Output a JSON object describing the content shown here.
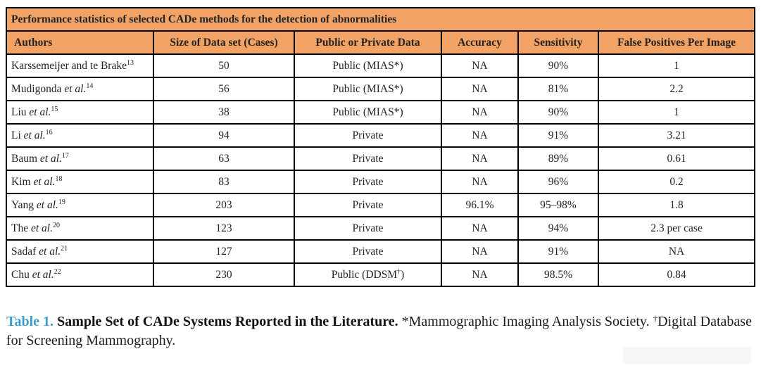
{
  "table": {
    "title": "Performance statistics of selected CADe methods for the detection of abnormalities",
    "columns": [
      "Authors",
      "Size of Data set (Cases)",
      "Public or Private Data",
      "Accuracy",
      "Sensitivity",
      "False Positives Per Image"
    ],
    "rows": [
      [
        [
          {
            "t": "Karssemeijer and te Brake"
          },
          {
            "t": "13",
            "sup": true
          }
        ],
        [
          {
            "t": "50"
          }
        ],
        [
          {
            "t": "Public (MIAS*)"
          }
        ],
        [
          {
            "t": "NA"
          }
        ],
        [
          {
            "t": "90%"
          }
        ],
        [
          {
            "t": "1"
          }
        ]
      ],
      [
        [
          {
            "t": "Mudigonda "
          },
          {
            "t": "et al.",
            "i": true
          },
          {
            "t": "14",
            "sup": true
          }
        ],
        [
          {
            "t": "56"
          }
        ],
        [
          {
            "t": "Public (MIAS*)"
          }
        ],
        [
          {
            "t": "NA"
          }
        ],
        [
          {
            "t": "81%"
          }
        ],
        [
          {
            "t": "2.2"
          }
        ]
      ],
      [
        [
          {
            "t": "Liu "
          },
          {
            "t": "et al.",
            "i": true
          },
          {
            "t": "15",
            "sup": true
          }
        ],
        [
          {
            "t": "38"
          }
        ],
        [
          {
            "t": "Public (MIAS*)"
          }
        ],
        [
          {
            "t": "NA"
          }
        ],
        [
          {
            "t": "90%"
          }
        ],
        [
          {
            "t": "1"
          }
        ]
      ],
      [
        [
          {
            "t": "Li "
          },
          {
            "t": "et al.",
            "i": true
          },
          {
            "t": "16",
            "sup": true
          }
        ],
        [
          {
            "t": "94"
          }
        ],
        [
          {
            "t": "Private"
          }
        ],
        [
          {
            "t": "NA"
          }
        ],
        [
          {
            "t": "91%"
          }
        ],
        [
          {
            "t": "3.21"
          }
        ]
      ],
      [
        [
          {
            "t": "Baum "
          },
          {
            "t": "et al.",
            "i": true
          },
          {
            "t": "17",
            "sup": true
          }
        ],
        [
          {
            "t": "63"
          }
        ],
        [
          {
            "t": "Private"
          }
        ],
        [
          {
            "t": "NA"
          }
        ],
        [
          {
            "t": "89%"
          }
        ],
        [
          {
            "t": "0.61"
          }
        ]
      ],
      [
        [
          {
            "t": "Kim "
          },
          {
            "t": "et al.",
            "i": true
          },
          {
            "t": "18",
            "sup": true
          }
        ],
        [
          {
            "t": "83"
          }
        ],
        [
          {
            "t": "Private"
          }
        ],
        [
          {
            "t": "NA"
          }
        ],
        [
          {
            "t": "96%"
          }
        ],
        [
          {
            "t": "0.2"
          }
        ]
      ],
      [
        [
          {
            "t": "Yang "
          },
          {
            "t": "et al.",
            "i": true
          },
          {
            "t": "19",
            "sup": true
          }
        ],
        [
          {
            "t": "203"
          }
        ],
        [
          {
            "t": "Private"
          }
        ],
        [
          {
            "t": "96.1%"
          }
        ],
        [
          {
            "t": "95–98%"
          }
        ],
        [
          {
            "t": "1.8"
          }
        ]
      ],
      [
        [
          {
            "t": "The "
          },
          {
            "t": "et al.",
            "i": true
          },
          {
            "t": "20",
            "sup": true
          }
        ],
        [
          {
            "t": "123"
          }
        ],
        [
          {
            "t": "Private"
          }
        ],
        [
          {
            "t": "NA"
          }
        ],
        [
          {
            "t": "94%"
          }
        ],
        [
          {
            "t": "2.3 per case"
          }
        ]
      ],
      [
        [
          {
            "t": "Sadaf "
          },
          {
            "t": "et al.",
            "i": true
          },
          {
            "t": "21",
            "sup": true
          }
        ],
        [
          {
            "t": "127"
          }
        ],
        [
          {
            "t": "Private"
          }
        ],
        [
          {
            "t": "NA"
          }
        ],
        [
          {
            "t": "91%"
          }
        ],
        [
          {
            "t": "NA"
          }
        ]
      ],
      [
        [
          {
            "t": "Chu "
          },
          {
            "t": "et al.",
            "i": true
          },
          {
            "t": "22",
            "sup": true
          }
        ],
        [
          {
            "t": "230"
          }
        ],
        [
          {
            "t": "Public (DDSM"
          },
          {
            "t": "†",
            "sup": true
          },
          {
            "t": ")"
          }
        ],
        [
          {
            "t": "NA"
          }
        ],
        [
          {
            "t": "98.5%"
          }
        ],
        [
          {
            "t": "0.84"
          }
        ]
      ]
    ]
  },
  "caption": {
    "segments": [
      {
        "t": "Table 1. ",
        "cls": "cap-label"
      },
      {
        "t": "Sample Set of CADe Systems Reported in the Literature. ",
        "cls": "cap-bold"
      },
      {
        "t": "*Mammographic Imaging Analysis Society. "
      },
      {
        "t": "†",
        "sup": true
      },
      {
        "t": "Digital Database for Screening Mammography."
      }
    ]
  },
  "colors": {
    "header_bg": "#F2A264",
    "border": "#000000",
    "caption_label": "#3F9EC9",
    "body_text": "#232323"
  }
}
